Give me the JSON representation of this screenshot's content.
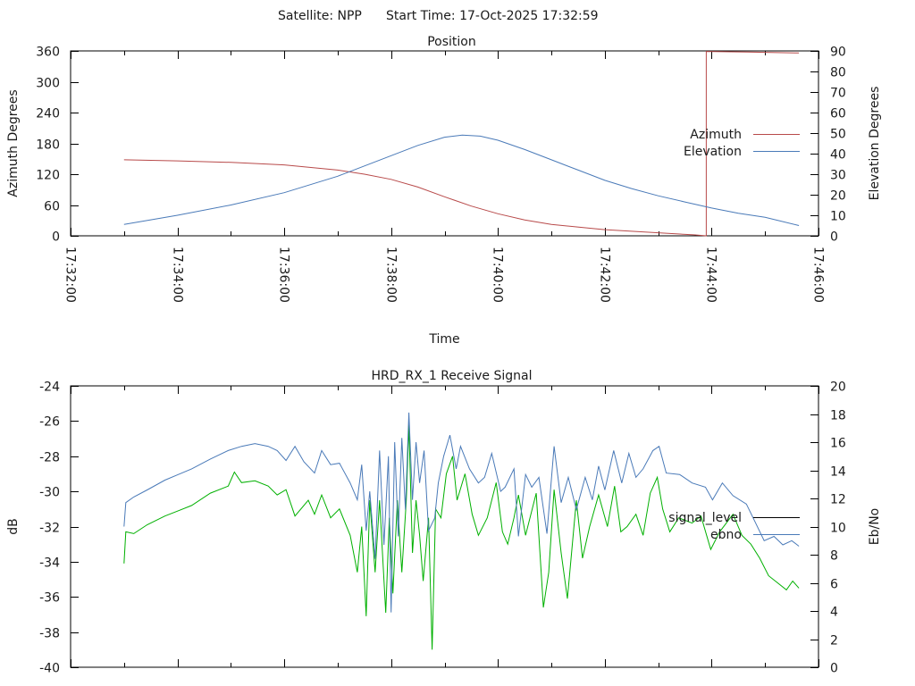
{
  "header": {
    "satellite_label": "Satellite: NPP",
    "start_time_label": "Start Time: 17-Oct-2025 17:32:59"
  },
  "colors": {
    "azimuth": "#b84a4a",
    "elevation": "#4a7ab8",
    "signal_level_key": "#000000",
    "signal_level_line": "#00b000",
    "ebno": "#4a7ab8",
    "axes": "#000000"
  },
  "chart_data": [
    {
      "type": "line",
      "title": "Position",
      "xlabel": "Time",
      "ylabel": "Azimuth Degrees",
      "y2label": "Elevation Degrees",
      "x_units": "seconds since 17:32:00",
      "xlim": [
        0,
        840
      ],
      "ylim": [
        0,
        360
      ],
      "y2lim": [
        0,
        90
      ],
      "x_ticks": [
        0,
        120,
        240,
        360,
        480,
        600,
        720,
        840
      ],
      "x_minor_ticks": [
        60,
        180,
        300,
        420,
        540,
        660,
        780
      ],
      "x_tick_labels": [
        "17:32:00",
        "17:34:00",
        "17:36:00",
        "17:38:00",
        "17:40:00",
        "17:42:00",
        "17:44:00",
        "17:46:00"
      ],
      "y_ticks": [
        0,
        60,
        120,
        180,
        240,
        300,
        360
      ],
      "y_tick_labels": [
        "0",
        "60",
        "120",
        "180",
        "240",
        "300",
        "360"
      ],
      "y2_ticks": [
        0,
        10,
        20,
        30,
        40,
        50,
        60,
        70,
        80,
        90
      ],
      "y2_tick_labels": [
        "0",
        "10",
        "20",
        "30",
        "40",
        "50",
        "60",
        "70",
        "80",
        "90"
      ],
      "legend_placement": "right",
      "grid": false,
      "series": [
        {
          "name": "Azimuth",
          "axis": "y",
          "x": [
            60,
            120,
            180,
            240,
            300,
            330,
            360,
            390,
            420,
            450,
            480,
            510,
            540,
            600,
            660,
            700,
            714,
            714,
            760,
            818
          ],
          "values": [
            148,
            146,
            143,
            138,
            128,
            120,
            110,
            95,
            76,
            58,
            43,
            31,
            22,
            12,
            6,
            2,
            0,
            359,
            358,
            356
          ]
        },
        {
          "name": "Elevation",
          "axis": "y2",
          "x": [
            60,
            120,
            180,
            240,
            300,
            330,
            360,
            390,
            420,
            440,
            460,
            480,
            510,
            540,
            570,
            600,
            630,
            660,
            690,
            720,
            750,
            780,
            818
          ],
          "values": [
            5.5,
            10,
            15,
            21,
            29,
            34,
            39,
            44,
            48,
            49,
            48.5,
            46.5,
            42,
            37,
            32,
            27,
            23,
            19.5,
            16.5,
            13.5,
            11,
            9,
            5
          ]
        }
      ]
    },
    {
      "type": "line",
      "title": "HRD_RX_1 Receive Signal",
      "xlabel": "",
      "ylabel": "dB",
      "y2label": "Eb/No",
      "x_units": "seconds since 17:32:00",
      "xlim": [
        0,
        840
      ],
      "ylim": [
        -40,
        -24
      ],
      "y2lim": [
        0,
        20
      ],
      "x_ticks": [
        0,
        120,
        240,
        360,
        480,
        600,
        720,
        840
      ],
      "x_minor_ticks": [
        60,
        180,
        300,
        420,
        540,
        660,
        780
      ],
      "y_ticks": [
        -40,
        -38,
        -36,
        -34,
        -32,
        -30,
        -28,
        -26,
        -24
      ],
      "y_tick_labels": [
        "-40",
        "-38",
        "-36",
        "-34",
        "-32",
        "-30",
        "-28",
        "-26",
        "-24"
      ],
      "y2_ticks": [
        0,
        2,
        4,
        6,
        8,
        10,
        12,
        14,
        16,
        18,
        20
      ],
      "y2_tick_labels": [
        "0",
        "2",
        "4",
        "6",
        "8",
        "10",
        "12",
        "14",
        "16",
        "18",
        "20"
      ],
      "legend_placement": "right",
      "grid": false,
      "series": [
        {
          "name": "signal_level",
          "axis": "y",
          "x": [
            60,
            62,
            71,
            86,
            106,
            121,
            136,
            157,
            177,
            184,
            192,
            207,
            222,
            232,
            242,
            252,
            267,
            274,
            282,
            292,
            302,
            314,
            322,
            327,
            332,
            336,
            342,
            347,
            354,
            358,
            362,
            367,
            372,
            377,
            380,
            384,
            388,
            392,
            396,
            402,
            406,
            410,
            416,
            422,
            429,
            434,
            443,
            451,
            458,
            468,
            478,
            485,
            491,
            498,
            503,
            511,
            523,
            531,
            537,
            543,
            551,
            558,
            568,
            575,
            583,
            593,
            603,
            611,
            618,
            625,
            635,
            643,
            651,
            659,
            665,
            673,
            683,
            698,
            708,
            719,
            729,
            744,
            754,
            764,
            774,
            784,
            794,
            804,
            811,
            818
          ],
          "values": [
            -34.1,
            -32.3,
            -32.4,
            -31.9,
            -31.4,
            -31.1,
            -30.8,
            -30.1,
            -29.7,
            -28.9,
            -29.5,
            -29.4,
            -29.7,
            -30.2,
            -29.9,
            -31.4,
            -30.5,
            -31.3,
            -30.2,
            -31.5,
            -31.0,
            -32.5,
            -34.6,
            -32.0,
            -37.1,
            -30.5,
            -34.6,
            -30.5,
            -36.9,
            -31.5,
            -35.8,
            -30.5,
            -34.6,
            -30.5,
            -26.2,
            -33.5,
            -30.5,
            -32.5,
            -35.1,
            -31.5,
            -39.0,
            -31.0,
            -31.5,
            -29.0,
            -28.0,
            -30.5,
            -29.0,
            -31.3,
            -32.5,
            -31.5,
            -29.5,
            -32.3,
            -33.0,
            -31.5,
            -30.2,
            -32.5,
            -30.1,
            -36.6,
            -34.6,
            -29.9,
            -33.5,
            -36.1,
            -30.5,
            -33.8,
            -32.0,
            -30.2,
            -32.0,
            -29.7,
            -32.3,
            -32.0,
            -31.3,
            -32.5,
            -30.1,
            -29.2,
            -31.0,
            -32.3,
            -31.5,
            -31.8,
            -31.4,
            -33.3,
            -32.3,
            -31.3,
            -32.5,
            -33.0,
            -33.8,
            -34.8,
            -35.2,
            -35.6,
            -35.1,
            -35.5
          ]
        },
        {
          "name": "ebno",
          "axis": "y2",
          "x": [
            60,
            62,
            71,
            86,
            106,
            121,
            136,
            157,
            177,
            192,
            207,
            222,
            232,
            242,
            252,
            262,
            274,
            282,
            292,
            302,
            314,
            322,
            327,
            332,
            336,
            342,
            347,
            352,
            357,
            360,
            364,
            368,
            372,
            376,
            380,
            384,
            388,
            392,
            397,
            402,
            409,
            413,
            419,
            426,
            433,
            438,
            448,
            458,
            465,
            473,
            483,
            488,
            498,
            503,
            511,
            518,
            526,
            535,
            543,
            551,
            559,
            568,
            578,
            586,
            593,
            600,
            610,
            619,
            627,
            635,
            643,
            654,
            661,
            669,
            684,
            698,
            713,
            721,
            732,
            744,
            759,
            769,
            779,
            790,
            800,
            810,
            818
          ],
          "values": [
            10.0,
            11.7,
            12.1,
            12.6,
            13.3,
            13.7,
            14.1,
            14.8,
            15.4,
            15.7,
            15.9,
            15.7,
            15.4,
            14.7,
            15.7,
            14.6,
            13.8,
            15.4,
            14.4,
            14.5,
            13.1,
            11.9,
            14.4,
            9.7,
            12.5,
            7.7,
            15.4,
            8.7,
            15.0,
            3.9,
            16.0,
            9.3,
            16.3,
            11.2,
            18.1,
            11.9,
            16.0,
            13.1,
            15.4,
            9.7,
            10.6,
            13.1,
            15.0,
            16.5,
            14.1,
            15.7,
            14.1,
            13.1,
            13.5,
            15.2,
            12.5,
            12.8,
            14.1,
            9.3,
            13.7,
            12.8,
            13.5,
            9.5,
            15.7,
            11.7,
            13.5,
            11.2,
            13.5,
            11.9,
            14.3,
            12.6,
            15.4,
            13.1,
            15.2,
            13.5,
            14.1,
            15.4,
            15.7,
            13.8,
            13.7,
            13.1,
            12.8,
            11.9,
            13.1,
            12.2,
            11.6,
            10.3,
            9.0,
            9.3,
            8.7,
            9.0,
            8.6
          ]
        }
      ]
    }
  ]
}
